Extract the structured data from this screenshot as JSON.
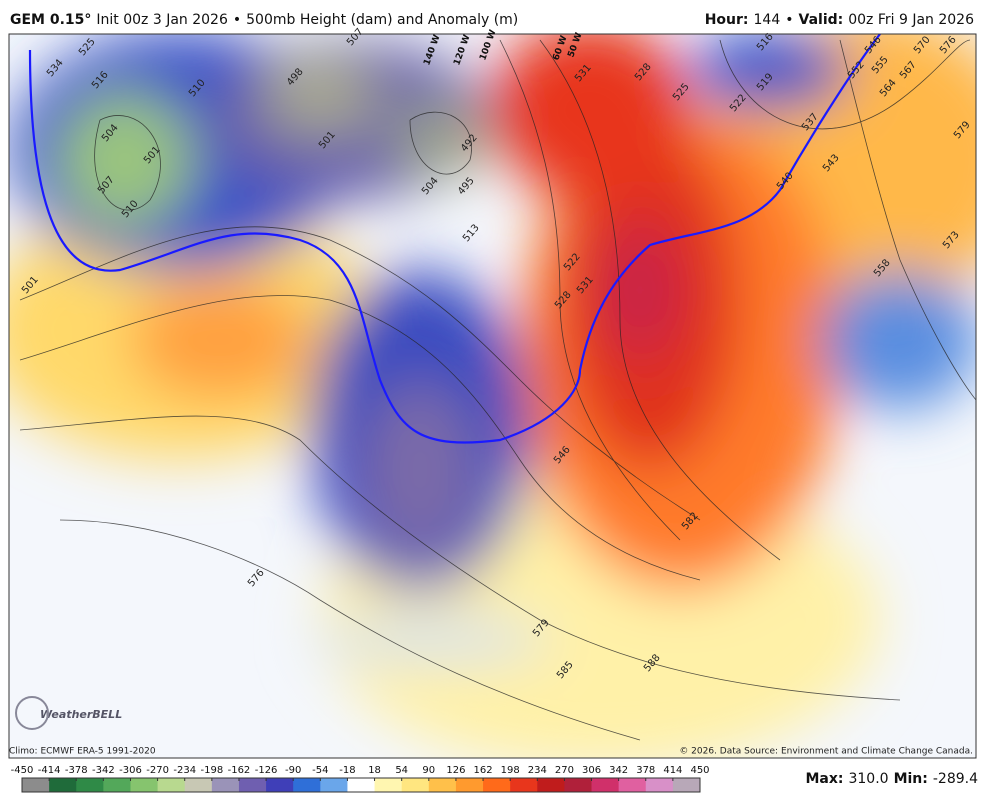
{
  "header": {
    "model": "GEM 0.15°",
    "init": "Init 00z 3 Jan 2026",
    "separator": "•",
    "product": "500mb Height (dam) and Anomaly (m)",
    "hour_label": "Hour:",
    "hour": "144",
    "valid_label": "Valid:",
    "valid": "00z Fri 9 Jan 2026"
  },
  "map": {
    "contour_labels": [
      "534",
      "525",
      "516",
      "510",
      "504",
      "501",
      "507",
      "510",
      "498",
      "507",
      "501",
      "504",
      "492",
      "495",
      "513",
      "531",
      "528",
      "525",
      "522",
      "519",
      "516",
      "531",
      "528",
      "522",
      "537",
      "540",
      "543",
      "546",
      "552",
      "555",
      "558",
      "564",
      "567",
      "570",
      "576",
      "579",
      "573",
      "501",
      "546",
      "582",
      "576",
      "579",
      "585",
      "588"
    ],
    "longitude_labels": [
      "140 W",
      "120 W",
      "100 W",
      "60 W",
      "50 W"
    ]
  },
  "footer": {
    "climo": "Climo: ECMWF ERA-5 1991-2020",
    "copyright": "© 2026. Data Source: Environment and Climate Change Canada.",
    "logo": "WeatherBELL"
  },
  "colorbar": {
    "ticks": [
      -450,
      -414,
      -378,
      -342,
      -306,
      -270,
      -234,
      -198,
      -162,
      -126,
      -90,
      -54,
      -18,
      18,
      54,
      90,
      126,
      162,
      198,
      234,
      270,
      306,
      342,
      378,
      414,
      450
    ],
    "colors": [
      "#8c8c8c",
      "#1f6b3a",
      "#2f8a47",
      "#53a85a",
      "#86c46e",
      "#b8d98f",
      "#c8c8b4",
      "#9a93b8",
      "#6f5fb0",
      "#3f3fb8",
      "#2f6fd8",
      "#6aa6ea",
      "#ffffff",
      "#fff6b0",
      "#ffe680",
      "#ffc04a",
      "#ff9a2e",
      "#ff6a1a",
      "#e8361c",
      "#c01c1c",
      "#b0203a",
      "#d0306a",
      "#e060a0",
      "#d890c8",
      "#b8a8b8"
    ]
  },
  "stats": {
    "max_label": "Max:",
    "max": "310.0",
    "min_label": "Min:",
    "min": "-289.4"
  }
}
